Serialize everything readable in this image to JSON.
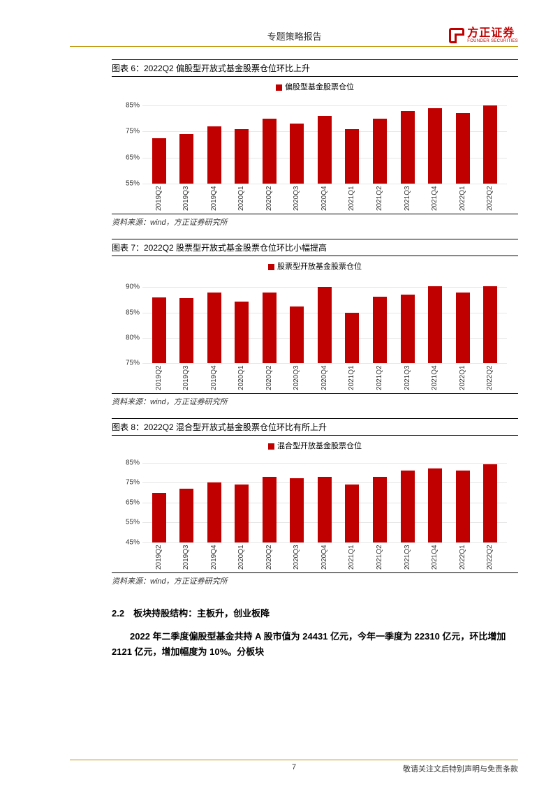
{
  "header": {
    "title": "专题策略报告",
    "logo_cn": "方正证券",
    "logo_en": "FOUNDER SECURITIES"
  },
  "charts": [
    {
      "title": "图表 6：2022Q2 偏股型开放式基金股票仓位环比上升",
      "legend": "偏股型基金股票仓位",
      "type": "bar",
      "bar_color": "#c00000",
      "grid_color": "#e6e6e6",
      "ymin": 55,
      "ymax": 88,
      "yticks": [
        55,
        65,
        75,
        85
      ],
      "ytick_labels": [
        "55%",
        "65%",
        "75%",
        "85%"
      ],
      "categories": [
        "2019Q2",
        "2019Q3",
        "2019Q4",
        "2020Q1",
        "2020Q2",
        "2020Q3",
        "2020Q4",
        "2021Q1",
        "2021Q2",
        "2021Q3",
        "2021Q4",
        "2022Q1",
        "2022Q2"
      ],
      "values": [
        72.5,
        74,
        77,
        76,
        80,
        78,
        81,
        76,
        80,
        83,
        84,
        82,
        85
      ],
      "source": "资料来源：wind，方正证券研究所"
    },
    {
      "title": "图表 7：2022Q2 股票型开放式基金股票仓位环比小幅提高",
      "legend": "股票型开放基金股票仓位",
      "type": "bar",
      "bar_color": "#c00000",
      "grid_color": "#e6e6e6",
      "ymin": 75,
      "ymax": 92,
      "yticks": [
        75,
        80,
        85,
        90
      ],
      "ytick_labels": [
        "75%",
        "80%",
        "85%",
        "90%"
      ],
      "categories": [
        "2019Q2",
        "2019Q3",
        "2019Q4",
        "2020Q1",
        "2020Q2",
        "2020Q3",
        "2020Q4",
        "2021Q1",
        "2021Q2",
        "2021Q3",
        "2021Q4",
        "2022Q1",
        "2022Q2"
      ],
      "values": [
        88,
        87.8,
        89,
        87.2,
        89,
        86.2,
        90,
        85,
        88.2,
        88.5,
        90.2,
        89,
        90.2
      ],
      "source": "资料来源：wind，方正证券研究所"
    },
    {
      "title": "图表 8：2022Q2 混合型开放式基金股票仓位环比有所上升",
      "legend": "混合型开放基金股票仓位",
      "type": "bar",
      "bar_color": "#c00000",
      "grid_color": "#e6e6e6",
      "ymin": 45,
      "ymax": 88,
      "yticks": [
        45,
        55,
        65,
        75,
        85
      ],
      "ytick_labels": [
        "45%",
        "55%",
        "65%",
        "75%",
        "85%"
      ],
      "categories": [
        "2019Q2",
        "2019Q3",
        "2019Q4",
        "2020Q1",
        "2020Q2",
        "2020Q3",
        "2020Q4",
        "2021Q1",
        "2021Q2",
        "2021Q3",
        "2021Q4",
        "2022Q1",
        "2022Q2"
      ],
      "values": [
        70,
        72,
        75,
        74,
        78,
        77,
        78,
        74,
        78,
        81,
        82,
        81,
        84
      ],
      "source": "资料来源：wind，方正证券研究所"
    }
  ],
  "section": {
    "heading": "2.2　板块持股结构：主板升，创业板降",
    "body": "2022 年二季度偏股型基金共持 A 股市值为 24431 亿元，今年一季度为 22310 亿元，环比增加 2121 亿元，增加幅度为 10%。分板块"
  },
  "footer": {
    "page_num": "7",
    "disclaimer": "敬请关注文后特别声明与免责条款"
  }
}
